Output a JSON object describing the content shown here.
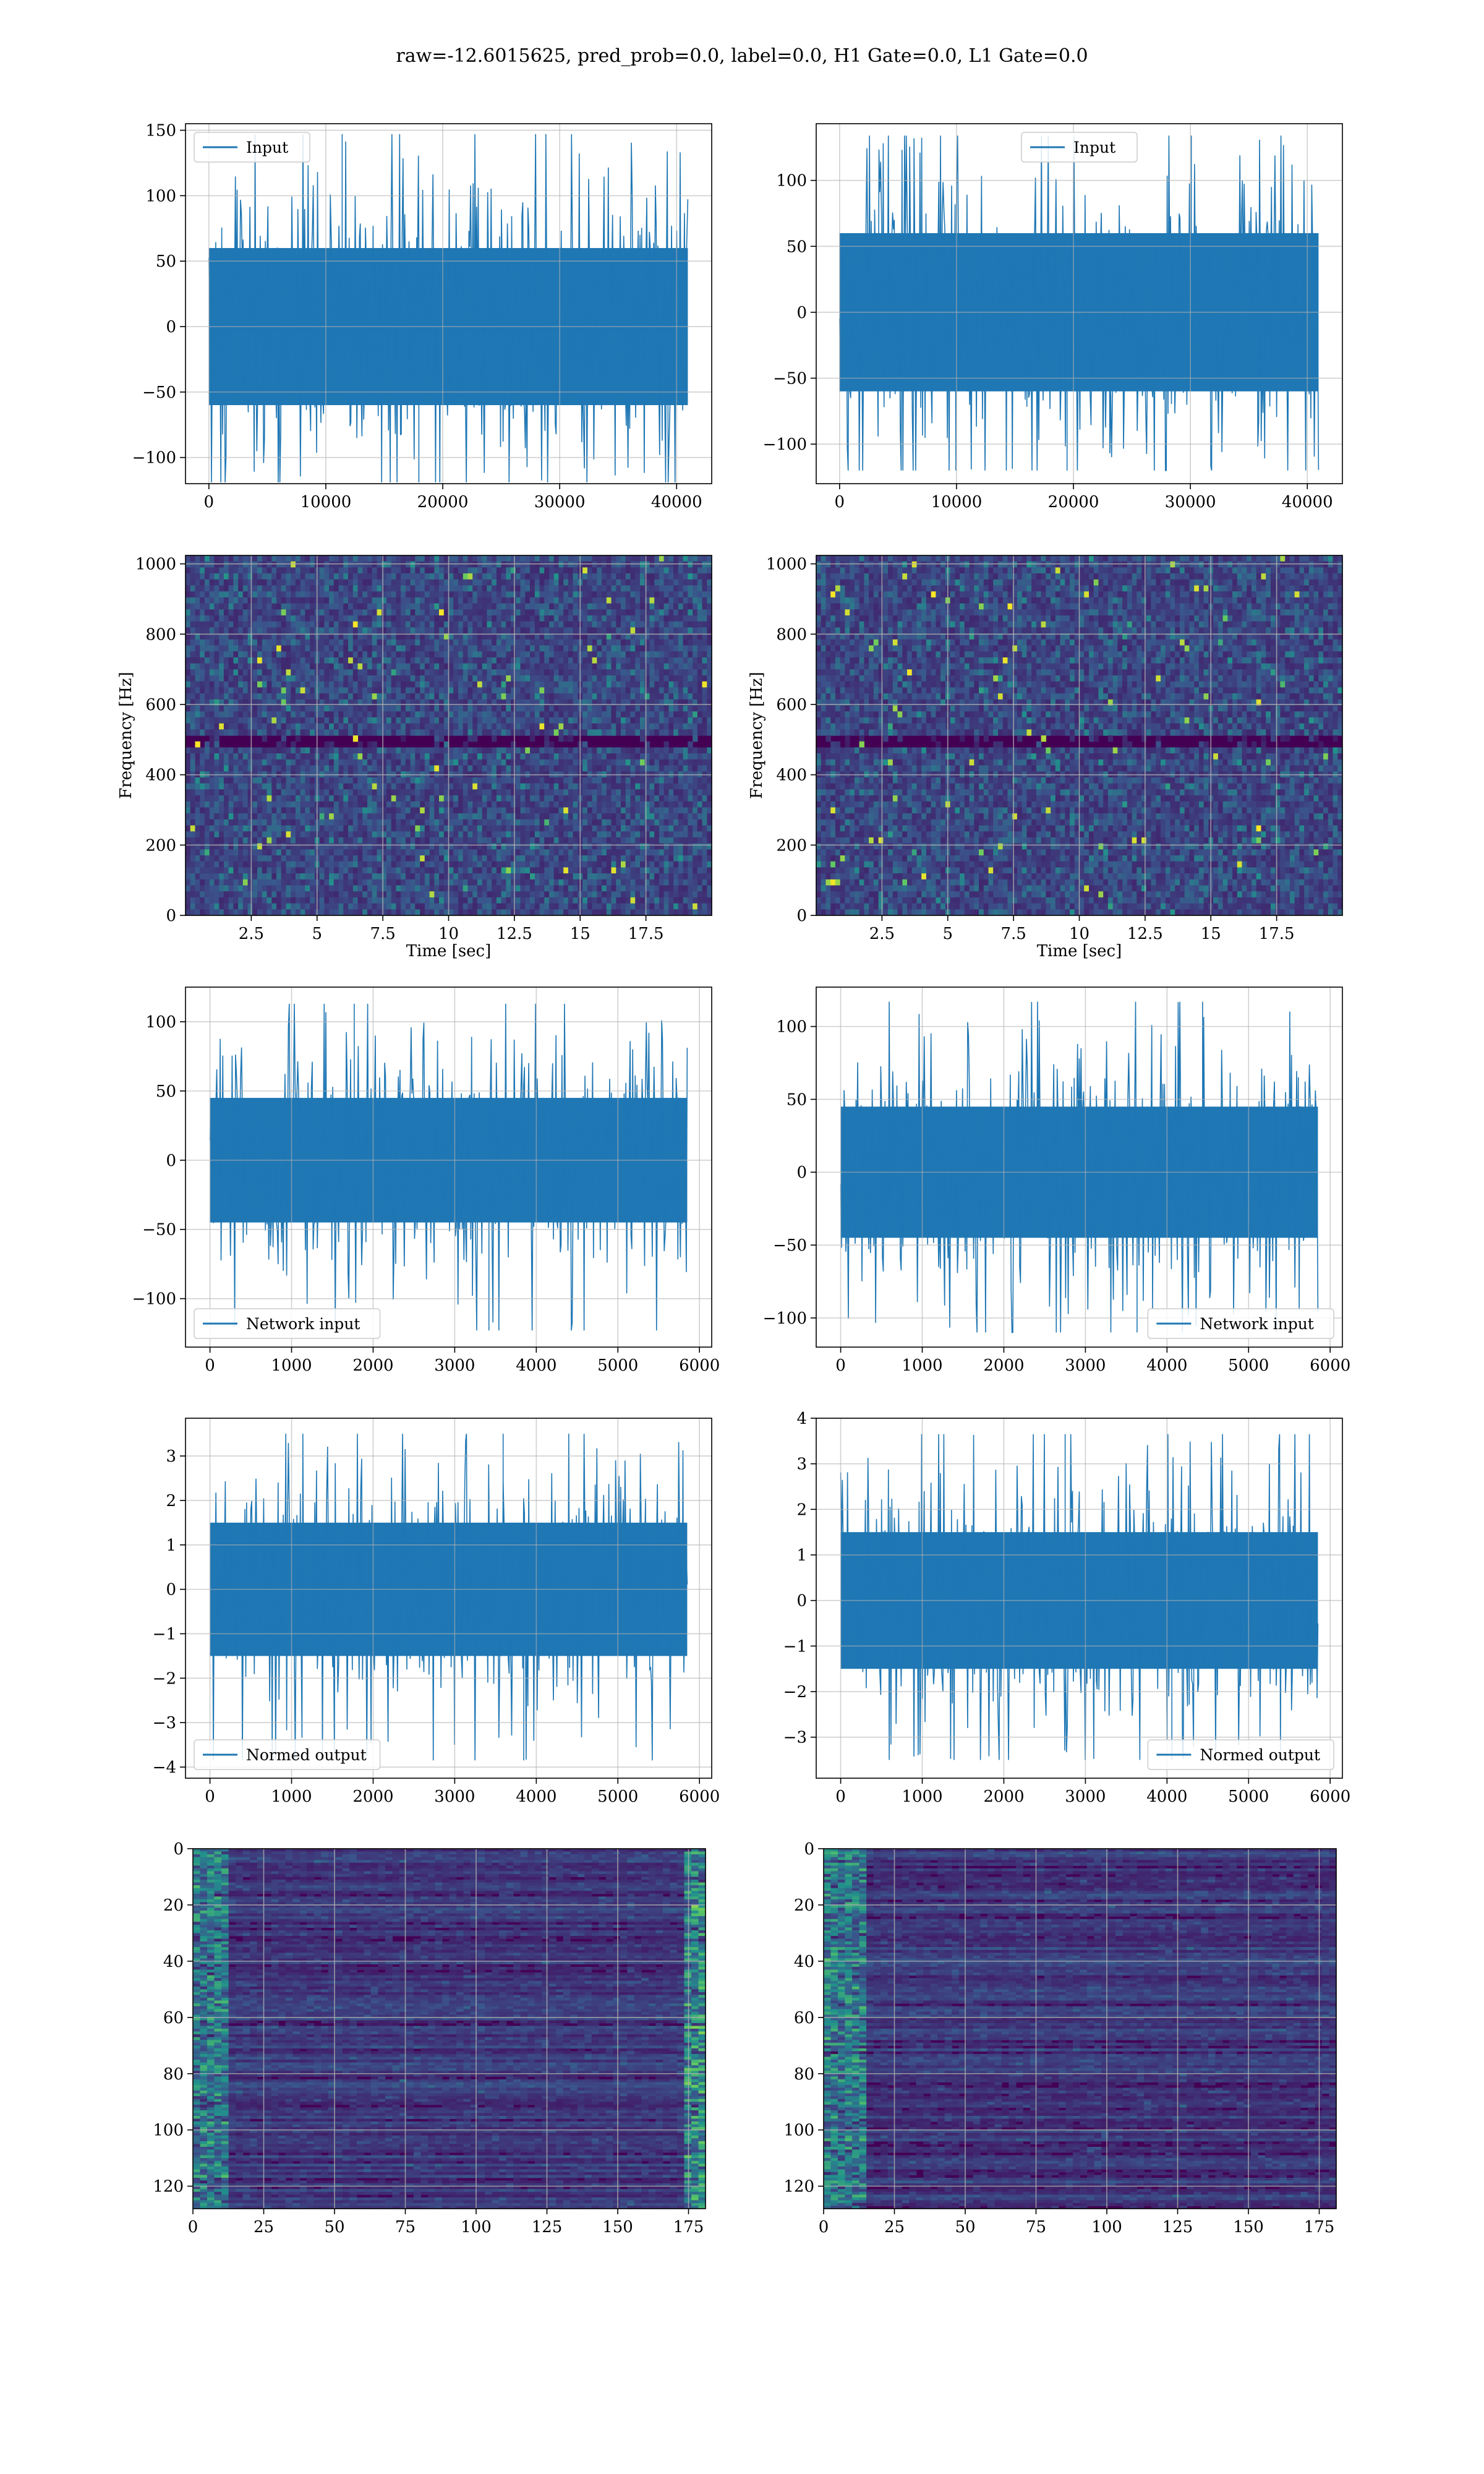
{
  "figure": {
    "suptitle": "raw=-12.6015625, pred_prob=0.0, label=0.0, H1 Gate=0.0, L1 Gate=0.0"
  },
  "colors": {
    "line": "#1f77b4",
    "grid": "#b0b0b0",
    "viridis_dark": "#440154",
    "viridis_mid": "#21918c",
    "viridis_light": "#fde725"
  },
  "chart_data": [
    {
      "type": "line",
      "panel": "row1-left",
      "legend": "Input",
      "legend_loc": "upper left",
      "x_range": [
        0,
        40960
      ],
      "y_envelope": [
        -119,
        147
      ],
      "y_core": [
        -60,
        60
      ],
      "xticks": [
        0,
        10000,
        20000,
        30000,
        40000
      ],
      "yticks": [
        150,
        100,
        50,
        0,
        -50,
        -100
      ],
      "ylim": [
        -120,
        155
      ],
      "xlim": [
        -2000,
        43000
      ],
      "grid": true
    },
    {
      "type": "line",
      "panel": "row1-right",
      "legend": "Input",
      "legend_loc": "upper center",
      "x_range": [
        0,
        40960
      ],
      "y_envelope": [
        -120,
        134
      ],
      "y_core": [
        -60,
        60
      ],
      "xticks": [
        0,
        10000,
        20000,
        30000,
        40000
      ],
      "yticks": [
        100,
        50,
        0,
        -50,
        -100
      ],
      "ylim": [
        -130,
        143
      ],
      "xlim": [
        -2000,
        43000
      ],
      "grid": true
    },
    {
      "type": "heatmap",
      "panel": "row2-left",
      "xlabel": "Time [sec]",
      "ylabel": "Frequency [Hz]",
      "xticks": [
        2.5,
        5.0,
        7.5,
        10.0,
        12.5,
        15.0,
        17.5
      ],
      "yticks": [
        0,
        200,
        400,
        600,
        800,
        1000
      ],
      "xlim": [
        0,
        20
      ],
      "ylim": [
        0,
        1024
      ],
      "colormap": "viridis",
      "grid": true
    },
    {
      "type": "heatmap",
      "panel": "row2-right",
      "xlabel": "Time [sec]",
      "ylabel": "Frequency [Hz]",
      "xticks": [
        2.5,
        5.0,
        7.5,
        10.0,
        12.5,
        15.0,
        17.5
      ],
      "yticks": [
        0,
        200,
        400,
        600,
        800,
        1000
      ],
      "xlim": [
        0,
        20
      ],
      "ylim": [
        0,
        1024
      ],
      "colormap": "viridis",
      "grid": true
    },
    {
      "type": "line",
      "panel": "row3-left",
      "legend": "Network input",
      "legend_loc": "lower left",
      "x_range": [
        0,
        5850
      ],
      "y_envelope": [
        -123,
        113
      ],
      "y_core": [
        -45,
        45
      ],
      "xticks": [
        0,
        1000,
        2000,
        3000,
        4000,
        5000,
        6000
      ],
      "yticks": [
        100,
        50,
        0,
        -50,
        -100
      ],
      "ylim": [
        -135,
        125
      ],
      "xlim": [
        -300,
        6150
      ],
      "grid": true
    },
    {
      "type": "line",
      "panel": "row3-right",
      "legend": "Network input",
      "legend_loc": "lower right",
      "x_range": [
        0,
        5850
      ],
      "y_envelope": [
        -110,
        117
      ],
      "y_core": [
        -45,
        45
      ],
      "xticks": [
        0,
        1000,
        2000,
        3000,
        4000,
        5000,
        6000
      ],
      "yticks": [
        100,
        50,
        0,
        -50,
        -100
      ],
      "ylim": [
        -120,
        127
      ],
      "xlim": [
        -300,
        6150
      ],
      "grid": true
    },
    {
      "type": "line",
      "panel": "row4-left",
      "legend": "Normed output",
      "legend_loc": "lower left",
      "x_range": [
        0,
        5850
      ],
      "y_envelope": [
        -3.85,
        3.5
      ],
      "y_core": [
        -1.5,
        1.5
      ],
      "xticks": [
        0,
        1000,
        2000,
        3000,
        4000,
        5000,
        6000
      ],
      "yticks": [
        3,
        2,
        1,
        0,
        -1,
        -2,
        -3,
        -4
      ],
      "ylim": [
        -4.25,
        3.85
      ],
      "xlim": [
        -300,
        6150
      ],
      "grid": true
    },
    {
      "type": "line",
      "panel": "row4-right",
      "legend": "Normed output",
      "legend_loc": "lower right",
      "x_range": [
        0,
        5850
      ],
      "y_envelope": [
        -3.5,
        3.65
      ],
      "y_core": [
        -1.5,
        1.5
      ],
      "xticks": [
        0,
        1000,
        2000,
        3000,
        4000,
        5000,
        6000
      ],
      "yticks": [
        4,
        3,
        2,
        1,
        0,
        -1,
        -2,
        -3
      ],
      "ylim": [
        -3.9,
        4.0
      ],
      "xlim": [
        -300,
        6150
      ],
      "grid": true
    },
    {
      "type": "heatmap",
      "panel": "row5-left",
      "xticks": [
        0,
        25,
        50,
        75,
        100,
        125,
        150,
        175
      ],
      "yticks": [
        0,
        20,
        40,
        60,
        80,
        100,
        120
      ],
      "xlim": [
        0,
        181
      ],
      "ylim": [
        128,
        0
      ],
      "colormap": "viridis",
      "grid": true
    },
    {
      "type": "heatmap",
      "panel": "row5-right",
      "xticks": [
        0,
        25,
        50,
        75,
        100,
        125,
        150,
        175
      ],
      "yticks": [
        0,
        20,
        40,
        60,
        80,
        100,
        120
      ],
      "xlim": [
        0,
        181
      ],
      "ylim": [
        128,
        0
      ],
      "colormap": "viridis",
      "grid": true
    }
  ]
}
